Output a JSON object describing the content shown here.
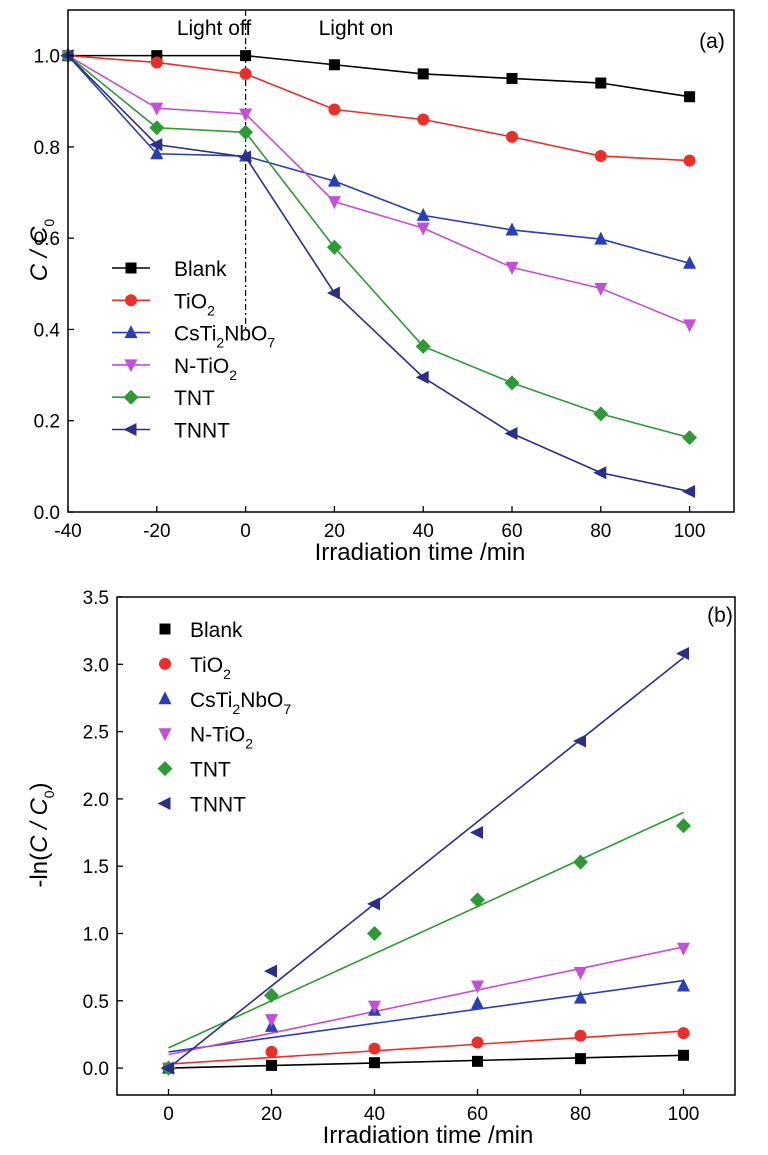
{
  "chart_data": [
    {
      "panel": "(a)",
      "type": "line",
      "xlabel": "Irradiation time /min",
      "ylabel": {
        "main": "C / C",
        "sub": "0"
      },
      "xlim": [
        -40,
        110
      ],
      "ylim": [
        0,
        1.1
      ],
      "xticks": [
        -40,
        -20,
        0,
        20,
        40,
        60,
        80,
        100
      ],
      "yticks": [
        0.0,
        0.2,
        0.4,
        0.6,
        0.8,
        1.0
      ],
      "ytick_labels": [
        "0.0",
        "0.2",
        "0.4",
        "0.6",
        "0.8",
        "1.0"
      ],
      "annotations": {
        "light_off": "Light off",
        "light_on": "Light on",
        "divider_x": 0
      },
      "legend": "left",
      "x": [
        -40,
        -20,
        0,
        20,
        40,
        60,
        80,
        100
      ],
      "series": [
        {
          "name": "Blank",
          "label": {
            "main": "Blank",
            "sub": "",
            "tail": ""
          },
          "marker": "square",
          "color": "#000000",
          "values": [
            1.0,
            1.0,
            1.0,
            0.98,
            0.96,
            0.95,
            0.94,
            0.91
          ]
        },
        {
          "name": "TiO2",
          "label": {
            "main": "TiO",
            "sub": "2",
            "tail": ""
          },
          "marker": "circle",
          "color": "#e8302a",
          "values": [
            1.0,
            0.985,
            0.96,
            0.882,
            0.86,
            0.822,
            0.78,
            0.77
          ]
        },
        {
          "name": "CsTi2NbO7",
          "label": {
            "main": "CsTi",
            "sub": "2",
            "tail": "NbO",
            "sub2": "7"
          },
          "marker": "triangle-up",
          "color": "#2a3fb5",
          "values": [
            1.0,
            0.785,
            0.78,
            0.725,
            0.65,
            0.618,
            0.598,
            0.545
          ]
        },
        {
          "name": "N-TiO2",
          "label": {
            "main": "N-TiO",
            "sub": "2",
            "tail": ""
          },
          "marker": "triangle-down",
          "color": "#c24fd6",
          "values": [
            1.0,
            0.885,
            0.872,
            0.68,
            0.622,
            0.536,
            0.49,
            0.41
          ]
        },
        {
          "name": "TNT",
          "label": {
            "main": "TNT",
            "sub": "",
            "tail": ""
          },
          "marker": "diamond",
          "color": "#2e9a35",
          "values": [
            1.0,
            0.842,
            0.832,
            0.58,
            0.363,
            0.283,
            0.215,
            0.163
          ]
        },
        {
          "name": "TNNT",
          "label": {
            "main": "TNNT",
            "sub": "",
            "tail": ""
          },
          "marker": "triangle-left",
          "color": "#2b2e8a",
          "values": [
            1.0,
            0.805,
            0.778,
            0.48,
            0.295,
            0.172,
            0.086,
            0.045
          ]
        }
      ]
    },
    {
      "panel": "(b)",
      "type": "scatter",
      "xlabel": "Irradiation time /min",
      "ylabel": {
        "pre": "-ln(",
        "main": "C / C",
        "sub": "0",
        "post": ")"
      },
      "xlim": [
        -10,
        110
      ],
      "ylim": [
        -0.2,
        3.5
      ],
      "xticks": [
        0,
        20,
        40,
        60,
        80,
        100
      ],
      "yticks": [
        0.0,
        0.5,
        1.0,
        1.5,
        2.0,
        2.5,
        3.0,
        3.5
      ],
      "ytick_labels": [
        "0.0",
        "0.5",
        "1.0",
        "1.5",
        "2.0",
        "2.5",
        "3.0",
        "3.5"
      ],
      "legend": "left",
      "x": [
        0,
        20,
        40,
        60,
        80,
        100
      ],
      "series": [
        {
          "name": "Blank",
          "label": {
            "main": "Blank",
            "sub": "",
            "tail": ""
          },
          "marker": "square",
          "color": "#000000",
          "values": [
            0.0,
            0.02,
            0.04,
            0.05,
            0.07,
            0.095
          ],
          "fit": [
            0.0,
            0.095
          ]
        },
        {
          "name": "TiO2",
          "label": {
            "main": "TiO",
            "sub": "2",
            "tail": ""
          },
          "marker": "circle",
          "color": "#e8302a",
          "values": [
            0.0,
            0.12,
            0.145,
            0.19,
            0.24,
            0.26
          ],
          "fit": [
            0.03,
            0.275
          ]
        },
        {
          "name": "CsTi2NbO7",
          "label": {
            "main": "CsTi",
            "sub": "2",
            "tail": "NbO",
            "sub2": "7"
          },
          "marker": "triangle-up",
          "color": "#2a3fb5",
          "values": [
            0.0,
            0.31,
            0.43,
            0.48,
            0.52,
            0.61
          ],
          "fit": [
            0.12,
            0.65
          ]
        },
        {
          "name": "N-TiO2",
          "label": {
            "main": "N-TiO",
            "sub": "2",
            "tail": ""
          },
          "marker": "triangle-down",
          "color": "#c24fd6",
          "values": [
            0.0,
            0.36,
            0.46,
            0.61,
            0.71,
            0.89
          ],
          "fit": [
            0.1,
            0.9
          ]
        },
        {
          "name": "TNT",
          "label": {
            "main": "TNT",
            "sub": "",
            "tail": ""
          },
          "marker": "diamond",
          "color": "#2e9a35",
          "values": [
            0.0,
            0.54,
            1.0,
            1.25,
            1.53,
            1.8
          ],
          "fit": [
            0.15,
            1.9
          ]
        },
        {
          "name": "TNNT",
          "label": {
            "main": "TNNT",
            "sub": "",
            "tail": ""
          },
          "marker": "triangle-left",
          "color": "#2b2e8a",
          "values": [
            0.0,
            0.72,
            1.22,
            1.75,
            2.43,
            3.08
          ],
          "fit": [
            0.0,
            3.05
          ]
        }
      ]
    }
  ]
}
